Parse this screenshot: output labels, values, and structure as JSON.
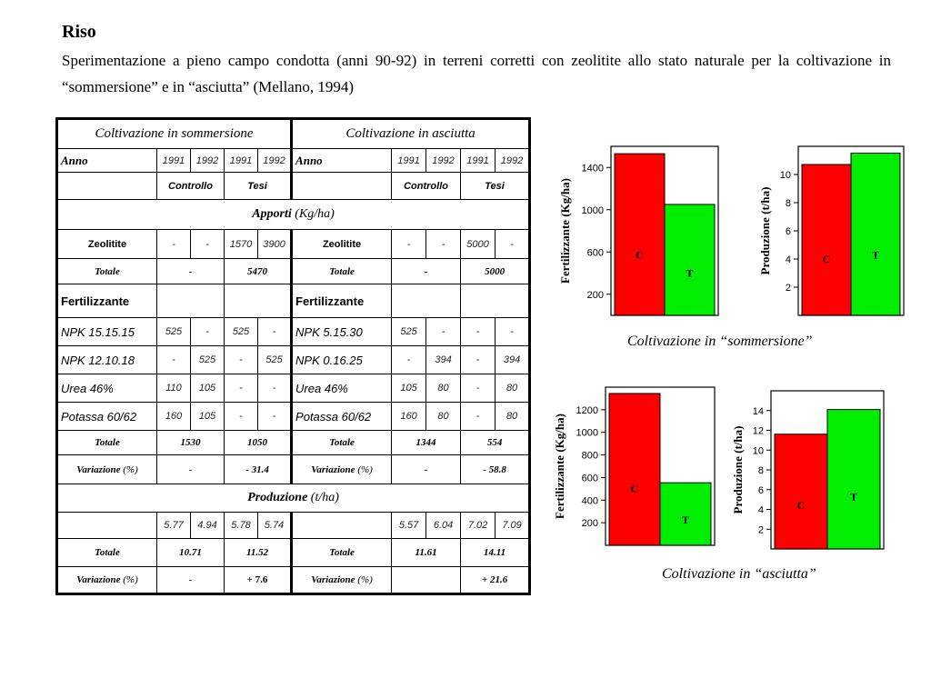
{
  "header": {
    "title": "Riso",
    "description": "Sperimentazione a pieno campo condotta (anni 90-92) in terreni corretti con zeolitite allo stato naturale per la coltivazione in “sommersione” e in “asciutta”  (Mellano, 1994)"
  },
  "table": {
    "head_sommersione": "Coltivazione in sommersione",
    "head_asciutta": "Coltivazione in asciutta",
    "anno": "Anno",
    "years": [
      "1991",
      "1992",
      "1991",
      "1992"
    ],
    "controllo": "Controllo",
    "tesi": "Tesi",
    "apporti": "Apporti",
    "unit_kg": "(Kg/ha)",
    "zeolitite": "Zeolitite",
    "totale": "Totale",
    "fertilizzante": "Fertilizzante",
    "variazione": "Variazione",
    "pct": "(%)",
    "produzione": "Produzione",
    "unit_t": "(t/ha)",
    "somm": {
      "zeolitite": [
        "-",
        "-",
        "1570",
        "3900"
      ],
      "zeo_tot": [
        "-",
        "5470"
      ],
      "fert_rows": [
        {
          "name": "NPK 15.15.15",
          "v": [
            "525",
            "-",
            "525",
            "-"
          ]
        },
        {
          "name": "NPK 12.10.18",
          "v": [
            "-",
            "525",
            "-",
            "525"
          ]
        },
        {
          "name": "Urea 46%",
          "v": [
            "110",
            "105",
            "-",
            "-"
          ]
        },
        {
          "name": "Potassa 60/62",
          "v": [
            "160",
            "105",
            "-",
            "-"
          ]
        }
      ],
      "fert_tot": [
        "1530",
        "1050"
      ],
      "fert_var": [
        "-",
        "- 31.4"
      ],
      "prod": [
        "5.77",
        "4.94",
        "5.78",
        "5.74"
      ],
      "prod_tot": [
        "10.71",
        "11.52"
      ],
      "prod_var": [
        "-",
        "+ 7.6"
      ]
    },
    "asc": {
      "zeolitite": [
        "-",
        "-",
        "5000",
        "-"
      ],
      "zeo_tot": [
        "-",
        "5000"
      ],
      "fert_rows": [
        {
          "name": "NPK 5.15.30",
          "v": [
            "525",
            "-",
            "-",
            "-"
          ]
        },
        {
          "name": "NPK 0.16.25",
          "v": [
            "-",
            "394",
            "-",
            "394"
          ]
        },
        {
          "name": "Urea 46%",
          "v": [
            "105",
            "80",
            "-",
            "80"
          ]
        },
        {
          "name": "Potassa 60/62",
          "v": [
            "160",
            "80",
            "-",
            "80"
          ]
        }
      ],
      "fert_tot": [
        "1344",
        "554"
      ],
      "fert_var": [
        "-",
        "- 58.8"
      ],
      "prod": [
        "5.57",
        "6.04",
        "7.02",
        "7.09"
      ],
      "prod_tot": [
        "11.61",
        "14.11"
      ],
      "prod_var": [
        "",
        "+ 21.6"
      ]
    }
  },
  "captions": {
    "sommersione": "Coltivazione in “sommersione”",
    "asciutta": "Coltivazione in “asciutta”"
  },
  "chart_data": [
    {
      "type": "bar",
      "categories": [
        "C",
        "T"
      ],
      "values": [
        1530,
        1050
      ],
      "ylabel": "Fertilizzante (Kg/ha)",
      "ylim": [
        0,
        1600
      ],
      "ticks": [
        200,
        600,
        1000,
        1400
      ],
      "colors": [
        "#ff0000",
        "#00ee00"
      ]
    },
    {
      "type": "bar",
      "categories": [
        "C",
        "T"
      ],
      "values": [
        10.71,
        11.52
      ],
      "ylabel": "Produzione (t/ha)",
      "ylim": [
        0,
        12
      ],
      "ticks": [
        2,
        4,
        6,
        8,
        10
      ],
      "colors": [
        "#ff0000",
        "#00ee00"
      ]
    },
    {
      "type": "bar",
      "categories": [
        "C",
        "T"
      ],
      "values": [
        1344,
        554
      ],
      "ylabel": "Fertilizzante (Kg/ha)",
      "ylim": [
        0,
        1400
      ],
      "ticks": [
        200,
        400,
        600,
        800,
        1000,
        1200
      ],
      "colors": [
        "#ff0000",
        "#00ee00"
      ]
    },
    {
      "type": "bar",
      "categories": [
        "C",
        "T"
      ],
      "values": [
        11.61,
        14.11
      ],
      "ylabel": "Produzione (t/ha)",
      "ylim": [
        0,
        16
      ],
      "ticks": [
        2,
        4,
        6,
        8,
        10,
        12,
        14
      ],
      "colors": [
        "#ff0000",
        "#00ee00"
      ]
    }
  ]
}
